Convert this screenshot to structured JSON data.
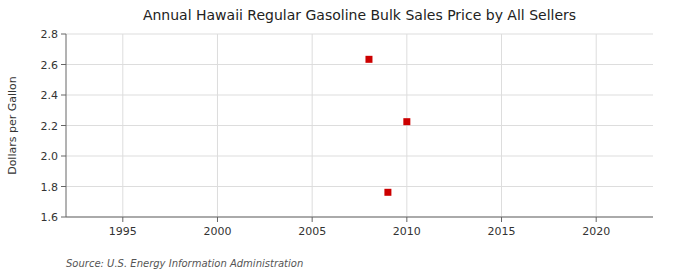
{
  "chart_data": {
    "type": "scatter",
    "title": "Annual Hawaii Regular Gasoline Bulk Sales Price by All Sellers",
    "ylabel": "Dollars per Gallon",
    "source": "Source: U.S. Energy Information Administration",
    "x": [
      2008,
      2009,
      2010
    ],
    "values": [
      2.634,
      1.762,
      2.225
    ],
    "color": "#cc0000",
    "marker": "square",
    "xlim": [
      1992,
      2023
    ],
    "ylim": [
      1.6,
      2.8
    ],
    "xticks": [
      1995,
      2000,
      2005,
      2010,
      2015,
      2020
    ],
    "yticks": [
      1.6,
      1.8,
      {
        "value": 2,
        "label": "2.0"
      },
      2.2,
      2.4,
      2.6,
      2.8
    ],
    "grid": true
  }
}
